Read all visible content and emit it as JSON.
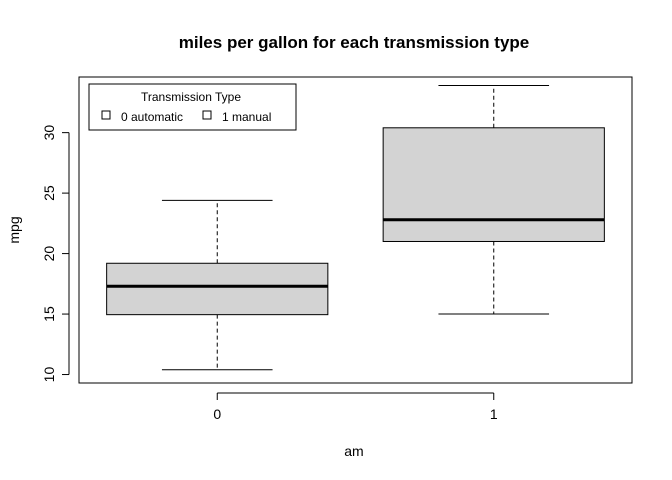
{
  "chart_data": {
    "type": "boxplot",
    "title": "miles per gallon for each transmission type",
    "xlabel": "am",
    "ylabel": "mpg",
    "categories": [
      "0",
      "1"
    ],
    "ylim": [
      9.3,
      34.6
    ],
    "yticks": [
      10,
      15,
      20,
      25,
      30
    ],
    "ytick_labels": [
      "10",
      "15",
      "20",
      "25",
      "30"
    ],
    "boxes": [
      {
        "category": "0",
        "min": 10.4,
        "q1": 14.95,
        "median": 17.3,
        "q3": 19.2,
        "max": 24.4
      },
      {
        "category": "1",
        "min": 15.0,
        "q1": 21.0,
        "median": 22.8,
        "q3": 30.4,
        "max": 33.9
      }
    ],
    "box_fill": "#d3d3d3",
    "legend": {
      "title": "Transmission Type",
      "placement": "top-left",
      "entries": [
        "0 automatic",
        "1 manual"
      ]
    }
  }
}
